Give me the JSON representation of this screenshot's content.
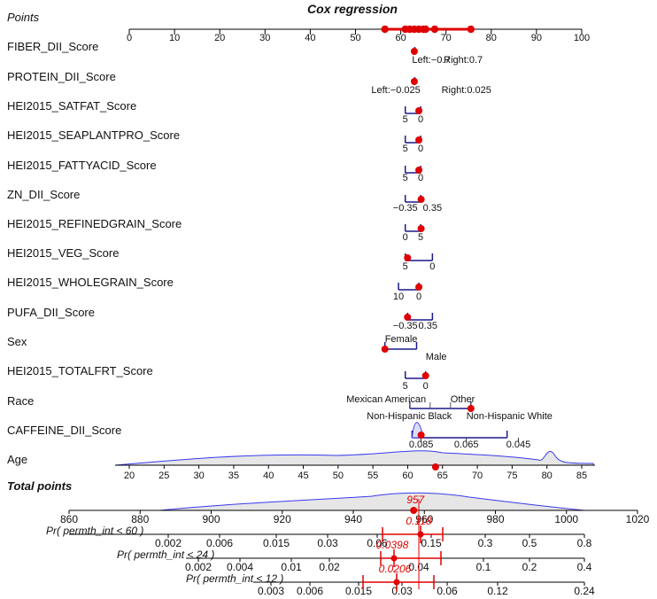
{
  "chart_data": {
    "type": "nomogram",
    "title": "Cox regression",
    "points_axis": {
      "label": "Points",
      "ticks": [
        0,
        10,
        20,
        30,
        40,
        50,
        60,
        70,
        80,
        90,
        100
      ],
      "marked": [
        56.5,
        61,
        62,
        63,
        64,
        65,
        65.5,
        67.5,
        75.5
      ]
    },
    "variables": [
      {
        "name": "FIBER_DII_Score",
        "labels": [
          "Left:−0.7",
          "Right:0.7"
        ],
        "value_points": 63
      },
      {
        "name": "PROTEIN_DII_Score",
        "labels": [
          "Left:−0.025",
          "Right:0.025"
        ],
        "value_points": 63
      },
      {
        "name": "HEI2015_SATFAT_Score",
        "labels": [
          "5",
          "0"
        ],
        "value_points": 64
      },
      {
        "name": "HEI2015_SEAPLANTPRO_Score",
        "labels": [
          "5",
          "0"
        ],
        "value_points": 64
      },
      {
        "name": "HEI2015_FATTYACID_Score",
        "labels": [
          "5",
          "0"
        ],
        "value_points": 64
      },
      {
        "name": "ZN_DII_Score",
        "labels": [
          "−0.35",
          "0.35"
        ],
        "value_points": 64.5
      },
      {
        "name": "HEI2015_REFINEDGRAIN_Score",
        "labels": [
          "0",
          "5"
        ],
        "value_points": 64.5
      },
      {
        "name": "HEI2015_VEG_Score",
        "labels": [
          "5",
          "0"
        ],
        "value_points": 61.5
      },
      {
        "name": "HEI2015_WHOLEGRAIN_Score",
        "labels": [
          "10",
          "0"
        ],
        "value_points": 64
      },
      {
        "name": "PUFA_DII_Score",
        "labels": [
          "−0.35",
          "0.35"
        ],
        "value_points": 61.5
      },
      {
        "name": "Sex",
        "labels": [
          "Female",
          "Male"
        ],
        "value_points": 56.5
      },
      {
        "name": "HEI2015_TOTALFRT_Score",
        "labels": [
          "5",
          "0"
        ],
        "value_points": 65.5
      },
      {
        "name": "Race",
        "labels": [
          "Mexican American",
          "Other",
          "Non-Hispanic Black",
          "Non-Hispanic White"
        ],
        "value_points": 75.5
      },
      {
        "name": "CAFFEINE_DII_Score",
        "labels": [
          "0.085",
          "0.065",
          "0.045"
        ],
        "value_points": 64.5
      },
      {
        "name": "Age",
        "labels": [
          "20",
          "25",
          "30",
          "35",
          "40",
          "45",
          "50",
          "55",
          "60",
          "65",
          "70",
          "75",
          "80",
          "85"
        ],
        "value": 64
      }
    ],
    "total_points": {
      "label": "Total points",
      "ticks": [
        860,
        880,
        900,
        920,
        940,
        960,
        980,
        1000,
        1020
      ],
      "value": 957
    },
    "probabilities": [
      {
        "label": "Pr( permth_int < 60 )",
        "ticks": [
          "0.002",
          "0.006",
          "0.015",
          "0.03",
          "0.06",
          "0.15",
          "0.3",
          "0.5",
          "0.8"
        ],
        "value": 0.118,
        "value_label": "0.118"
      },
      {
        "label": "Pr( permth_int < 24 )",
        "ticks": [
          "0.002",
          "0.004",
          "0.01",
          "0.02",
          "0.04",
          "0.1",
          "0.2",
          "0.4"
        ],
        "value": 0.0398,
        "value_label": "0.0398"
      },
      {
        "label": "Pr( permth_int < 12 )",
        "ticks": [
          "0.003",
          "0.006",
          "0.015",
          "0.03",
          "0.06",
          "0.12",
          "0.24"
        ],
        "value": 0.0206,
        "value_label": "0.0206"
      }
    ]
  },
  "colors": {
    "axis": "#1a1a8a",
    "marker": "#e00000",
    "density_line": "#3a3aee",
    "density_fill": "#e6e6e6"
  }
}
